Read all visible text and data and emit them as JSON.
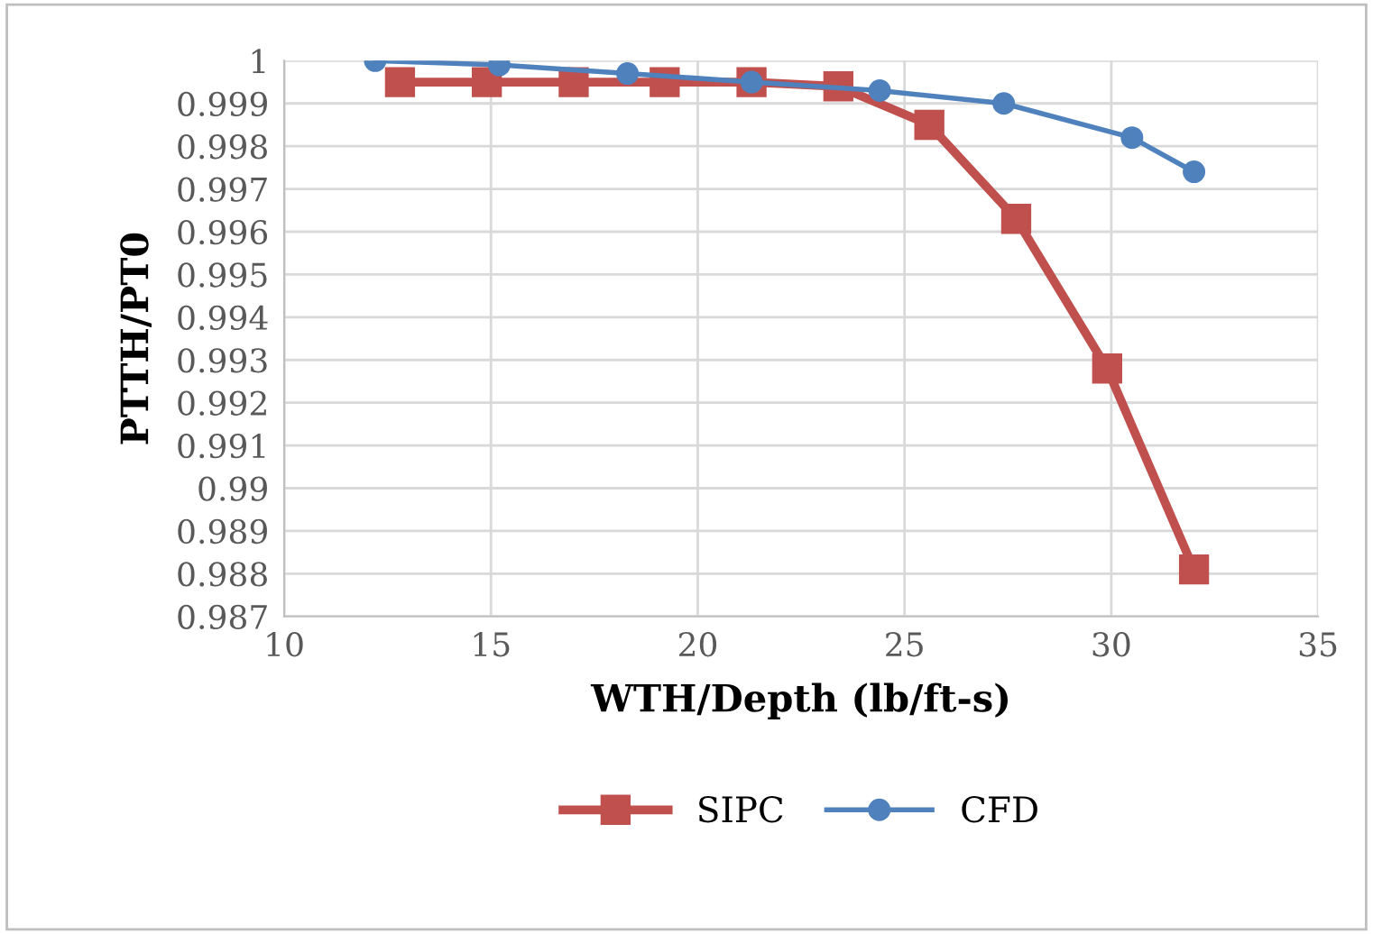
{
  "chart_data": {
    "type": "line",
    "xlabel": "WTH/Depth (lb/ft-s)",
    "ylabel": "PTTH/PT0",
    "xlim": [
      10,
      35
    ],
    "xticks": [
      10,
      15,
      20,
      25,
      30,
      35
    ],
    "ylim": [
      0.987,
      1
    ],
    "yticks": [
      0.987,
      0.988,
      0.989,
      0.99,
      0.991,
      0.992,
      0.993,
      0.994,
      0.995,
      0.996,
      0.997,
      0.998,
      0.999,
      1
    ],
    "grid": true,
    "legend": "bottom",
    "line_style": "solid",
    "series": [
      {
        "name": "SIPC",
        "color": "#c0504d",
        "marker": "square",
        "x": [
          12.8,
          14.9,
          17.0,
          19.2,
          21.3,
          23.4,
          25.6,
          27.7,
          29.9,
          32.0
        ],
        "values": [
          0.9995,
          0.9995,
          0.9995,
          0.9995,
          0.9995,
          0.9994,
          0.9985,
          0.9963,
          0.9928,
          0.9881
        ]
      },
      {
        "name": "CFD",
        "color": "#4f81bd",
        "marker": "circle",
        "x": [
          12.2,
          15.2,
          18.3,
          21.3,
          24.4,
          27.4,
          30.5,
          32.0
        ],
        "values": [
          1.0,
          0.9999,
          0.9997,
          0.9995,
          0.9993,
          0.999,
          0.9982,
          0.9974
        ]
      }
    ]
  }
}
